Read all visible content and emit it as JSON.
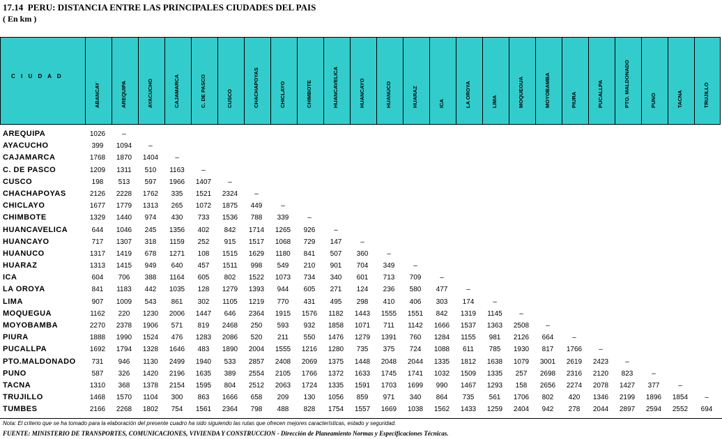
{
  "title": "17.14  PERU: DISTANCIA ENTRE LAS PRINCIPALES CIUDADES DEL PAIS",
  "subtitle": "( En km )",
  "header": {
    "city_label": "C I U D A D",
    "colors": {
      "header_bg": "#33cccc"
    },
    "columns": [
      "ABANCAY",
      "AREQUIPA",
      "AYACUCHO",
      "CAJAMARCA",
      "C. DE PASCO",
      "CUSCO",
      "CHACHAPOYAS",
      "CHICLAYO",
      "CHIMBOTE",
      "HUANCAVELICA",
      "HUANCAYO",
      "HUANUCO",
      "HUARAZ",
      "ICA",
      "LA OROYA",
      "LIMA",
      "MOQUEGUA",
      "MOYOBAMBA",
      "PIURA",
      "PUCALLPA",
      "PTO. MALDONADO",
      "PUNO",
      "TACNA",
      "TRUJILLO"
    ]
  },
  "rows": [
    {
      "city": "AREQUIPA",
      "values": [
        "1026",
        "–"
      ]
    },
    {
      "city": "AYACUCHO",
      "values": [
        "399",
        "1094",
        "–"
      ]
    },
    {
      "city": "CAJAMARCA",
      "values": [
        "1768",
        "1870",
        "1404",
        "–"
      ]
    },
    {
      "city": "C. DE PASCO",
      "values": [
        "1209",
        "1311",
        "510",
        "1163",
        "–"
      ]
    },
    {
      "city": "CUSCO",
      "values": [
        "198",
        "513",
        "597",
        "1966",
        "1407",
        "–"
      ]
    },
    {
      "city": "CHACHAPOYAS",
      "values": [
        "2126",
        "2228",
        "1762",
        "335",
        "1521",
        "2324",
        "–"
      ]
    },
    {
      "city": "CHICLAYO",
      "values": [
        "1677",
        "1779",
        "1313",
        "265",
        "1072",
        "1875",
        "449",
        "–"
      ]
    },
    {
      "city": "CHIMBOTE",
      "values": [
        "1329",
        "1440",
        "974",
        "430",
        "733",
        "1536",
        "788",
        "339",
        "–"
      ]
    },
    {
      "city": "HUANCAVELICA",
      "values": [
        "644",
        "1046",
        "245",
        "1356",
        "402",
        "842",
        "1714",
        "1265",
        "926",
        "–"
      ]
    },
    {
      "city": "HUANCAYO",
      "values": [
        "717",
        "1307",
        "318",
        "1159",
        "252",
        "915",
        "1517",
        "1068",
        "729",
        "147",
        "–"
      ]
    },
    {
      "city": "HUANUCO",
      "values": [
        "1317",
        "1419",
        "678",
        "1271",
        "108",
        "1515",
        "1629",
        "1180",
        "841",
        "507",
        "360",
        "–"
      ]
    },
    {
      "city": "HUARAZ",
      "values": [
        "1313",
        "1415",
        "949",
        "640",
        "457",
        "1511",
        "998",
        "549",
        "210",
        "901",
        "704",
        "349",
        "–"
      ]
    },
    {
      "city": "ICA",
      "values": [
        "604",
        "706",
        "388",
        "1164",
        "605",
        "802",
        "1522",
        "1073",
        "734",
        "340",
        "601",
        "713",
        "709",
        "–"
      ]
    },
    {
      "city": "LA OROYA",
      "values": [
        "841",
        "1183",
        "442",
        "1035",
        "128",
        "1279",
        "1393",
        "944",
        "605",
        "271",
        "124",
        "236",
        "580",
        "477",
        "–"
      ]
    },
    {
      "city": "LIMA",
      "values": [
        "907",
        "1009",
        "543",
        "861",
        "302",
        "1105",
        "1219",
        "770",
        "431",
        "495",
        "298",
        "410",
        "406",
        "303",
        "174",
        "–"
      ]
    },
    {
      "city": "MOQUEGUA",
      "values": [
        "1162",
        "220",
        "1230",
        "2006",
        "1447",
        "646",
        "2364",
        "1915",
        "1576",
        "1182",
        "1443",
        "1555",
        "1551",
        "842",
        "1319",
        "1145",
        "–"
      ]
    },
    {
      "city": "MOYOBAMBA",
      "values": [
        "2270",
        "2378",
        "1906",
        "571",
        "819",
        "2468",
        "250",
        "593",
        "932",
        "1858",
        "1071",
        "711",
        "1142",
        "1666",
        "1537",
        "1363",
        "2508",
        "–"
      ]
    },
    {
      "city": "PIURA",
      "values": [
        "1888",
        "1990",
        "1524",
        "476",
        "1283",
        "2086",
        "520",
        "211",
        "550",
        "1476",
        "1279",
        "1391",
        "760",
        "1284",
        "1155",
        "981",
        "2126",
        "664",
        "–"
      ]
    },
    {
      "city": "PUCALLPA",
      "values": [
        "1692",
        "1794",
        "1328",
        "1646",
        "483",
        "1890",
        "2004",
        "1555",
        "1216",
        "1280",
        "735",
        "375",
        "724",
        "1088",
        "611",
        "785",
        "1930",
        "817",
        "1766",
        "–"
      ]
    },
    {
      "city": "PTO.MALDONADO",
      "values": [
        "731",
        "946",
        "1130",
        "2499",
        "1940",
        "533",
        "2857",
        "2408",
        "2069",
        "1375",
        "1448",
        "2048",
        "2044",
        "1335",
        "1812",
        "1638",
        "1079",
        "3001",
        "2619",
        "2423",
        "–"
      ]
    },
    {
      "city": "PUNO",
      "values": [
        "587",
        "326",
        "1420",
        "2196",
        "1635",
        "389",
        "2554",
        "2105",
        "1766",
        "1372",
        "1633",
        "1745",
        "1741",
        "1032",
        "1509",
        "1335",
        "257",
        "2698",
        "2316",
        "2120",
        "823",
        "–"
      ]
    },
    {
      "city": "TACNA",
      "values": [
        "1310",
        "368",
        "1378",
        "2154",
        "1595",
        "804",
        "2512",
        "2063",
        "1724",
        "1335",
        "1591",
        "1703",
        "1699",
        "990",
        "1467",
        "1293",
        "158",
        "2656",
        "2274",
        "2078",
        "1427",
        "377",
        "–"
      ]
    },
    {
      "city": "TRUJILLO",
      "values": [
        "1468",
        "1570",
        "1104",
        "300",
        "863",
        "1666",
        "658",
        "209",
        "130",
        "1056",
        "859",
        "971",
        "340",
        "864",
        "735",
        "561",
        "1706",
        "802",
        "420",
        "1346",
        "2199",
        "1896",
        "1854",
        "–"
      ]
    },
    {
      "city": "TUMBES",
      "values": [
        "2166",
        "2268",
        "1802",
        "754",
        "1561",
        "2364",
        "798",
        "488",
        "828",
        "1754",
        "1557",
        "1669",
        "1038",
        "1562",
        "1433",
        "1259",
        "2404",
        "942",
        "278",
        "2044",
        "2897",
        "2594",
        "2552",
        "694"
      ]
    }
  ],
  "footer": {
    "note": "Nota: El criterio que se ha tomado para la elaboración del presente cuadro ha sido siguiendo las rutas que ofrecen mejores características, estado y seguridad.",
    "source": "FUENTE: MINISTERIO DE TRANSPORTES, COMUNICACIONES, VIVIENDA Y CONSTRUCCION - Dirección de Planeamiento Normas y Especificaciones Técnicas."
  }
}
